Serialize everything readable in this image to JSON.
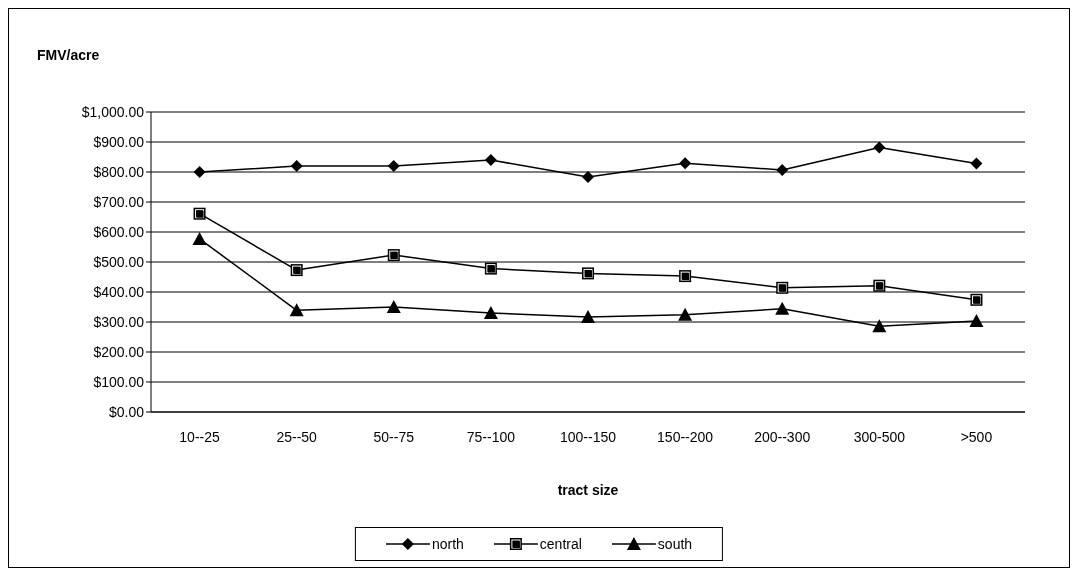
{
  "chart_data": {
    "type": "line",
    "title": "FMV/acre",
    "xlabel": "tract size",
    "categories": [
      "10--25",
      "25--50",
      "50--75",
      "75--100",
      "100--150",
      "150--200",
      "200--300",
      "300-500",
      ">500"
    ],
    "series": [
      {
        "name": "north",
        "color": "#000000",
        "marker": "diamond",
        "values": [
          800,
          820,
          820,
          840,
          783,
          829,
          807,
          882,
          828
        ]
      },
      {
        "name": "central",
        "color": "#000000",
        "marker": "square",
        "values": [
          661,
          473,
          523,
          478,
          462,
          453,
          414,
          421,
          374
        ]
      },
      {
        "name": "south",
        "color": "#000000",
        "marker": "triangle",
        "values": [
          577,
          339,
          350,
          330,
          317,
          324,
          344,
          286,
          303
        ]
      }
    ],
    "ylim": [
      0,
      1000
    ],
    "yticks": [
      {
        "value": 0,
        "label": "$0.00"
      },
      {
        "value": 100,
        "label": "$100.00"
      },
      {
        "value": 200,
        "label": "$200.00"
      },
      {
        "value": 300,
        "label": "$300.00"
      },
      {
        "value": 400,
        "label": "$400.00"
      },
      {
        "value": 500,
        "label": "$500.00"
      },
      {
        "value": 600,
        "label": "$600.00"
      },
      {
        "value": 700,
        "label": "$700.00"
      },
      {
        "value": 800,
        "label": "$800.00"
      },
      {
        "value": 900,
        "label": "$900.00"
      },
      {
        "value": 1000,
        "label": "$1,000.00"
      }
    ],
    "grid": "y",
    "legend": "bottom",
    "line_style": "solid"
  }
}
